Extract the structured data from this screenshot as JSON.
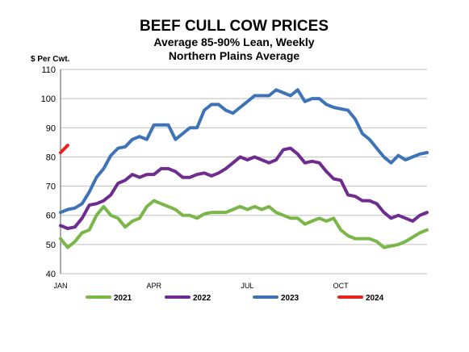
{
  "chart_data": {
    "type": "line",
    "title": "BEEF CULL COW PRICES",
    "subtitle_lines": [
      "Average 85-90% Lean, Weekly",
      "Northern Plains Average"
    ],
    "ylabel": "$ Per Cwt.",
    "ylim": [
      40,
      110
    ],
    "yticks": [
      40,
      50,
      60,
      70,
      80,
      90,
      100,
      110
    ],
    "xlim": [
      1,
      52
    ],
    "x_unit": "week of year",
    "xticks": [
      {
        "label": "JAN",
        "week": 1
      },
      {
        "label": "APR",
        "week": 14
      },
      {
        "label": "JUL",
        "week": 27
      },
      {
        "label": "OCT",
        "week": 40
      }
    ],
    "grid": "horizontal",
    "legend_position": "bottom",
    "series": [
      {
        "name": "2021",
        "color": "#7AB648",
        "values": [
          52,
          49,
          51,
          54,
          55,
          60,
          63,
          60,
          59,
          56,
          58,
          59,
          63,
          65,
          64,
          63,
          62,
          60,
          60,
          59,
          60.5,
          61,
          61,
          61,
          62,
          63,
          62,
          63,
          62,
          63,
          61,
          60,
          59,
          59,
          57,
          58,
          59,
          58,
          59,
          55,
          53,
          52,
          52,
          52,
          51,
          49,
          49.5,
          50,
          51,
          52.5,
          54,
          55
        ]
      },
      {
        "name": "2022",
        "color": "#6E2C8E",
        "values": [
          56.5,
          55.5,
          56,
          59,
          63.5,
          64,
          65,
          67,
          71,
          72,
          74,
          73,
          74,
          74,
          76,
          76,
          75,
          73,
          73,
          74,
          74.5,
          73.5,
          74.5,
          76,
          78,
          80,
          79,
          80,
          79,
          78,
          79,
          82.5,
          83,
          81,
          78,
          78.5,
          78,
          75,
          72.5,
          72,
          67,
          66.5,
          65,
          65,
          64,
          61,
          59,
          60,
          59,
          58,
          60,
          61
        ]
      },
      {
        "name": "2023",
        "color": "#3F73B8",
        "values": [
          61,
          62,
          62.5,
          64,
          68,
          73,
          76,
          80.5,
          83,
          83.5,
          86,
          87,
          86,
          91,
          91,
          91,
          86,
          88,
          90,
          90,
          96,
          98,
          98,
          96,
          95,
          97,
          99,
          101,
          101,
          101,
          103,
          102,
          101,
          103,
          99,
          100,
          100,
          98,
          97,
          96.5,
          96,
          93,
          88,
          86,
          83,
          80,
          78,
          80.5,
          79,
          80,
          81,
          81.5
        ]
      },
      {
        "name": "2024",
        "color": "#E8231C",
        "values": [
          81.5,
          84
        ]
      }
    ]
  }
}
